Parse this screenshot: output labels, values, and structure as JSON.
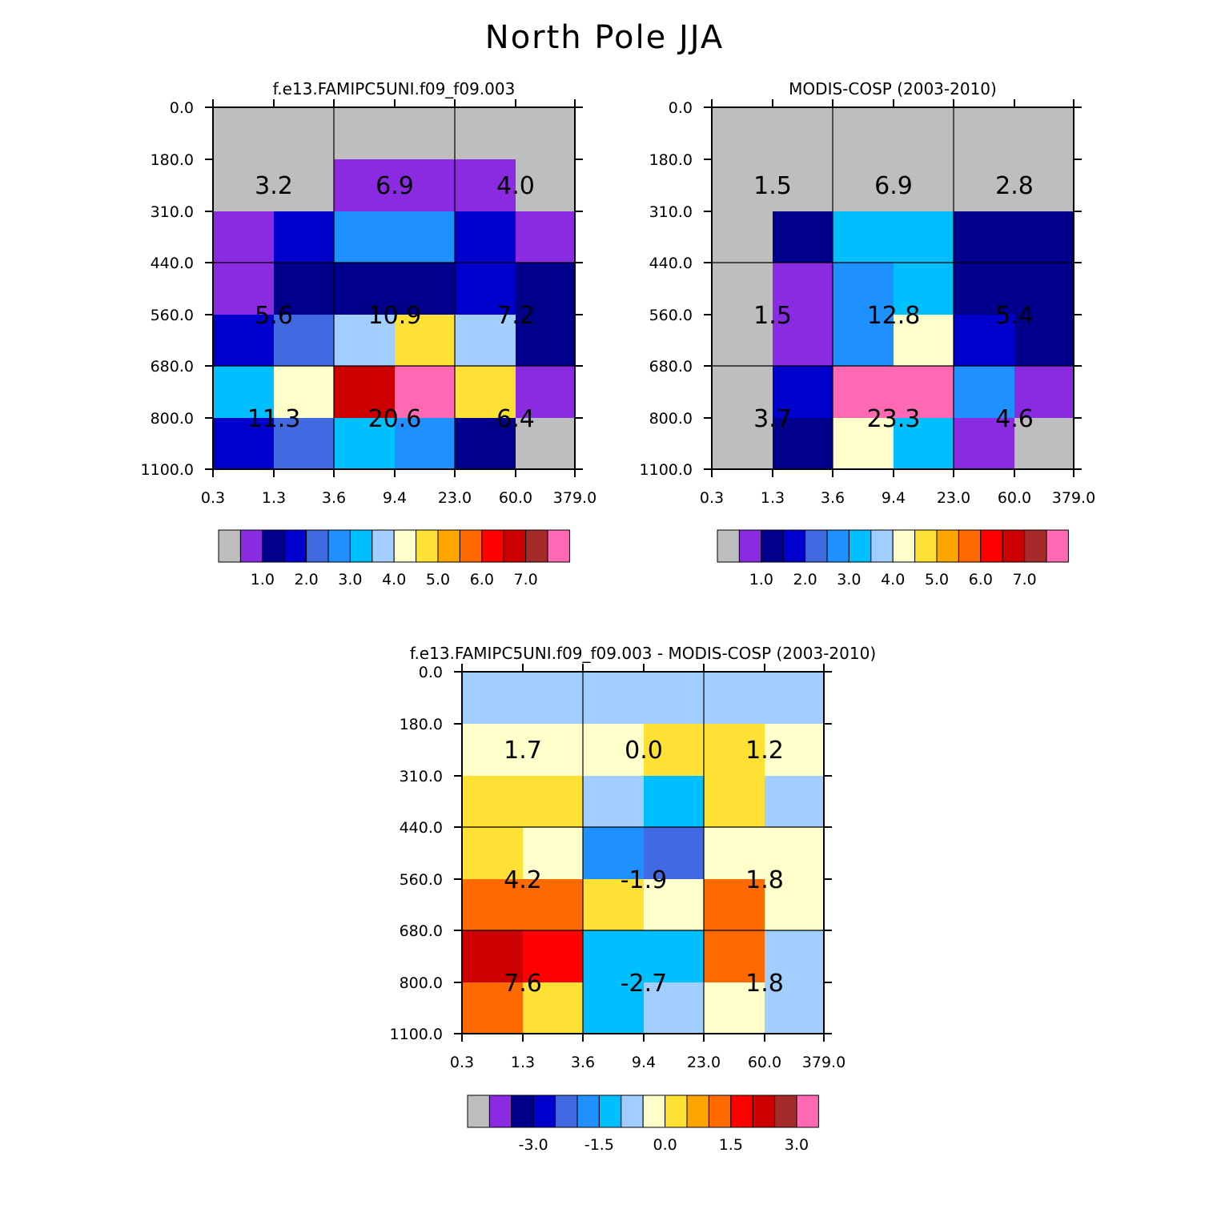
{
  "title": "North Pole JJA",
  "y_ticks": [
    "0.0",
    "180.0",
    "310.0",
    "440.0",
    "560.0",
    "680.0",
    "800.0",
    "1100.0"
  ],
  "x_ticks": [
    "0.3",
    "1.3",
    "3.6",
    "9.4",
    "23.0",
    "60.0",
    "379.0"
  ],
  "colorbar_palette": [
    "#bebebe",
    "#8a2be2",
    "#00008b",
    "#0000cd",
    "#4169e1",
    "#1e90ff",
    "#00bfff",
    "#a2cdff",
    "#ffffcc",
    "#ffe135",
    "#ffa500",
    "#ff6a00",
    "#ff0000",
    "#cd0000",
    "#a52a2a",
    "#ff69b4"
  ],
  "chart_data": [
    {
      "type": "heatmap",
      "title": "f.e13.FAMIPC5UNI.f09_f09.003",
      "colorbar_labels": [
        "1.0",
        "2.0",
        "3.0",
        "4.0",
        "5.0",
        "6.0",
        "7.0"
      ],
      "cell_colors": [
        [
          "#bebebe",
          "#bebebe",
          "#bebebe",
          "#bebebe",
          "#bebebe",
          "#bebebe"
        ],
        [
          "#bebebe",
          "#bebebe",
          "#8a2be2",
          "#8a2be2",
          "#8a2be2",
          "#bebebe"
        ],
        [
          "#8a2be2",
          "#0000cd",
          "#1e90ff",
          "#1e90ff",
          "#0000cd",
          "#8a2be2"
        ],
        [
          "#8a2be2",
          "#00008b",
          "#00008b",
          "#00008b",
          "#0000cd",
          "#00008b"
        ],
        [
          "#0000cd",
          "#4169e1",
          "#a2cdff",
          "#ffe135",
          "#a2cdff",
          "#00008b"
        ],
        [
          "#00bfff",
          "#ffffcc",
          "#cd0000",
          "#ff69b4",
          "#ffe135",
          "#8a2be2"
        ],
        [
          "#0000cd",
          "#4169e1",
          "#00bfff",
          "#1e90ff",
          "#00008b",
          "#bebebe"
        ]
      ],
      "summary_labels": [
        [
          "3.2",
          "6.9",
          "4.0"
        ],
        [
          "5.6",
          "10.9",
          "7.2"
        ],
        [
          "11.3",
          "20.6",
          "6.4"
        ]
      ]
    },
    {
      "type": "heatmap",
      "title": "MODIS-COSP (2003-2010)",
      "colorbar_labels": [
        "1.0",
        "2.0",
        "3.0",
        "4.0",
        "5.0",
        "6.0",
        "7.0"
      ],
      "cell_colors": [
        [
          "#bebebe",
          "#bebebe",
          "#bebebe",
          "#bebebe",
          "#bebebe",
          "#bebebe"
        ],
        [
          "#bebebe",
          "#bebebe",
          "#bebebe",
          "#bebebe",
          "#bebebe",
          "#bebebe"
        ],
        [
          "#bebebe",
          "#00008b",
          "#00bfff",
          "#00bfff",
          "#00008b",
          "#00008b"
        ],
        [
          "#bebebe",
          "#8a2be2",
          "#1e90ff",
          "#00bfff",
          "#00008b",
          "#00008b"
        ],
        [
          "#bebebe",
          "#8a2be2",
          "#1e90ff",
          "#ffffcc",
          "#0000cd",
          "#00008b"
        ],
        [
          "#bebebe",
          "#0000cd",
          "#ff69b4",
          "#ff69b4",
          "#1e90ff",
          "#8a2be2"
        ],
        [
          "#bebebe",
          "#00008b",
          "#ffffcc",
          "#00bfff",
          "#8a2be2",
          "#bebebe"
        ]
      ],
      "summary_labels": [
        [
          "1.5",
          "6.9",
          "2.8"
        ],
        [
          "1.5",
          "12.8",
          "5.4"
        ],
        [
          "3.7",
          "23.3",
          "4.6"
        ]
      ]
    },
    {
      "type": "heatmap",
      "title": "f.e13.FAMIPC5UNI.f09_f09.003 - MODIS-COSP (2003-2010)",
      "colorbar_labels": [
        "-3.0",
        "-1.5",
        "0.0",
        "1.5",
        "3.0"
      ],
      "cell_colors": [
        [
          "#a2cdff",
          "#a2cdff",
          "#a2cdff",
          "#a2cdff",
          "#a2cdff",
          "#a2cdff"
        ],
        [
          "#ffffcc",
          "#ffffcc",
          "#ffffcc",
          "#ffe135",
          "#ffe135",
          "#ffffcc"
        ],
        [
          "#ffe135",
          "#ffe135",
          "#a2cdff",
          "#00bfff",
          "#ffe135",
          "#a2cdff"
        ],
        [
          "#ffe135",
          "#ffffcc",
          "#1e90ff",
          "#4169e1",
          "#ffffcc",
          "#ffffcc"
        ],
        [
          "#ff6a00",
          "#ff6a00",
          "#ffe135",
          "#ffffcc",
          "#ff6a00",
          "#ffffcc"
        ],
        [
          "#cd0000",
          "#ff0000",
          "#00bfff",
          "#00bfff",
          "#ff6a00",
          "#a2cdff"
        ],
        [
          "#ff6a00",
          "#ffe135",
          "#00bfff",
          "#a2cdff",
          "#ffffcc",
          "#a2cdff"
        ]
      ],
      "summary_labels": [
        [
          "1.7",
          "0.0",
          "1.2"
        ],
        [
          "4.2",
          "-1.9",
          "1.8"
        ],
        [
          "7.6",
          "-2.7",
          "1.8"
        ]
      ]
    }
  ]
}
